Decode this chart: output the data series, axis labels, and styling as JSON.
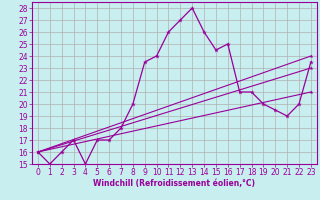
{
  "title": "",
  "xlabel": "Windchill (Refroidissement éolien,°C)",
  "xlim": [
    -0.5,
    23.5
  ],
  "ylim": [
    15,
    28.5
  ],
  "xticks": [
    0,
    1,
    2,
    3,
    4,
    5,
    6,
    7,
    8,
    9,
    10,
    11,
    12,
    13,
    14,
    15,
    16,
    17,
    18,
    19,
    20,
    21,
    22,
    23
  ],
  "yticks": [
    15,
    16,
    17,
    18,
    19,
    20,
    21,
    22,
    23,
    24,
    25,
    26,
    27,
    28
  ],
  "background_color": "#c8eef0",
  "grid_color": "#b0b0b0",
  "line_color": "#990099",
  "line1_x": [
    0,
    1,
    2,
    3,
    4,
    5,
    6,
    7,
    8,
    9,
    10,
    11,
    12,
    13,
    14,
    15,
    16,
    17,
    18,
    19,
    20,
    21,
    22,
    23
  ],
  "line1_y": [
    16,
    15,
    16,
    17,
    15,
    17,
    17,
    18,
    20,
    23.5,
    24,
    26,
    27,
    28,
    26,
    24.5,
    25,
    21,
    21,
    20,
    19.5,
    19,
    20,
    23.5
  ],
  "line2_x": [
    0,
    23
  ],
  "line2_y": [
    16,
    24
  ],
  "line3_x": [
    0,
    23
  ],
  "line3_y": [
    16,
    21
  ],
  "line4_x": [
    0,
    23
  ],
  "line4_y": [
    16,
    23
  ],
  "tick_fontsize": 5.5,
  "xlabel_fontsize": 5.5
}
